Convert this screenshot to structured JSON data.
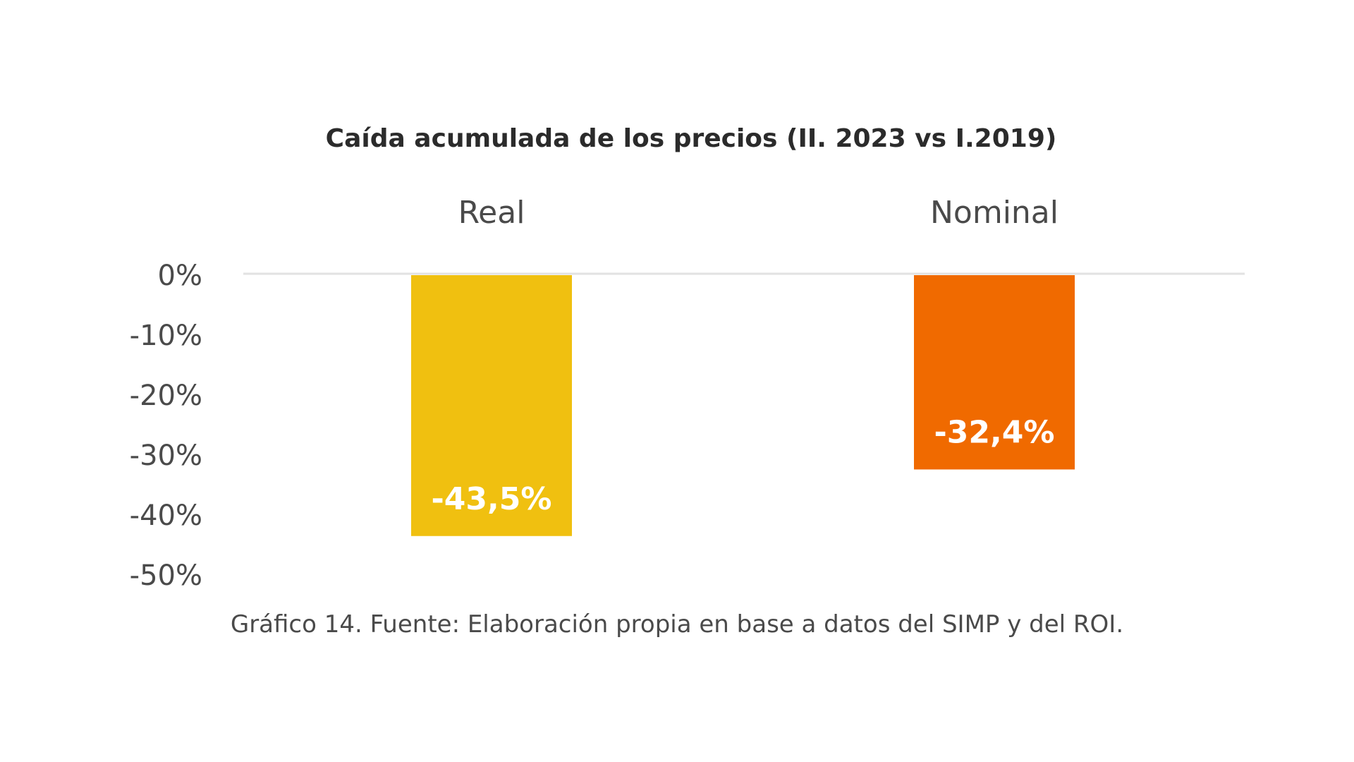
{
  "chart_data": {
    "type": "bar",
    "title": "Caída acumulada de los precios (II. 2023 vs I.2019)",
    "categories": [
      "Real",
      "Nominal"
    ],
    "values": [
      -43.5,
      -32.4
    ],
    "data_labels": [
      "-43,5%",
      "-32,4%"
    ],
    "colors": [
      "#F0C010",
      "#F06A00"
    ],
    "ylim": [
      -50,
      0
    ],
    "yticks": [
      0,
      -10,
      -20,
      -30,
      -40,
      -50
    ],
    "ytick_labels": [
      "0%",
      "-10%",
      "-20%",
      "-30%",
      "-40%",
      "-50%"
    ],
    "category_label_position": "top",
    "grid": false,
    "legend": "none"
  },
  "caption": "Gráfico 14. Fuente: Elaboración propia en base a datos del SIMP y del ROI."
}
